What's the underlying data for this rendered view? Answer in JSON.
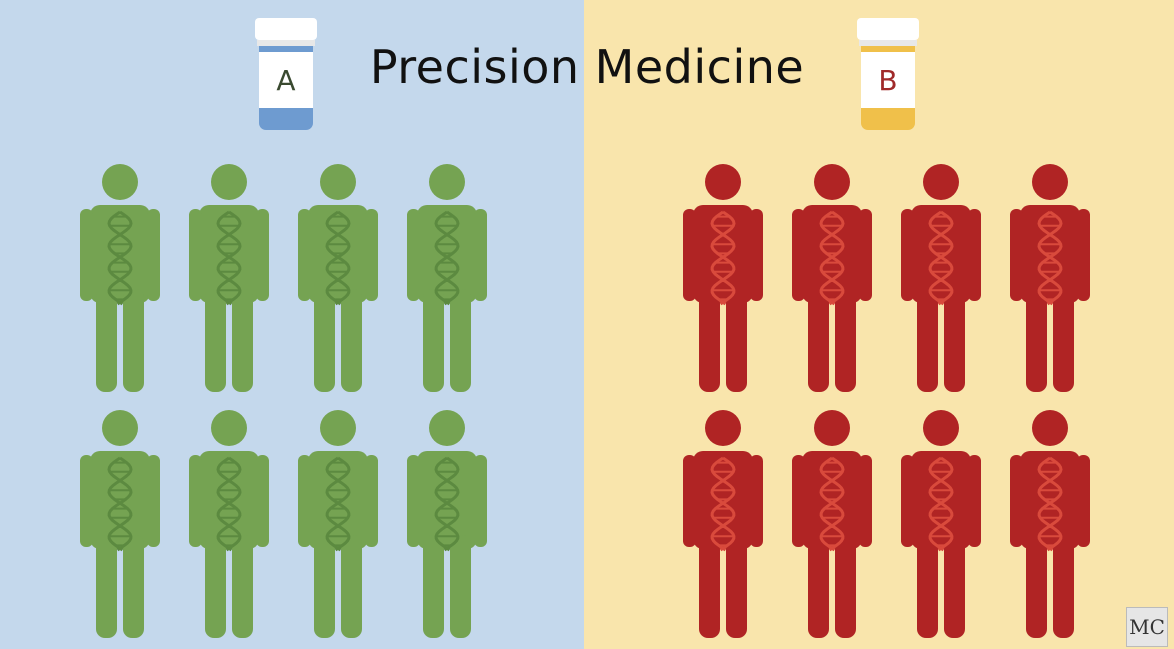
{
  "title": "Precision Medicine",
  "colors": {
    "left_background": "#c4d8ec",
    "right_background": "#f9e5ac",
    "green_person": "#75a352",
    "green_dna": "#5c8a40",
    "red_person": "#b02424",
    "red_dna": "#d94a3c",
    "bottle_a": "#6e9bd0",
    "bottle_b": "#f0c04a",
    "label_a_text": "#3a4a30",
    "label_b_text": "#a02a2a"
  },
  "bottles": [
    {
      "label": "A",
      "color_key": "bottle_a"
    },
    {
      "label": "B",
      "color_key": "bottle_b"
    }
  ],
  "groups": [
    {
      "name": "green",
      "count": 8,
      "icon": "person-dna-icon"
    },
    {
      "name": "red",
      "count": 8,
      "icon": "person-dna-icon"
    }
  ],
  "logo": {
    "text": "MC"
  }
}
